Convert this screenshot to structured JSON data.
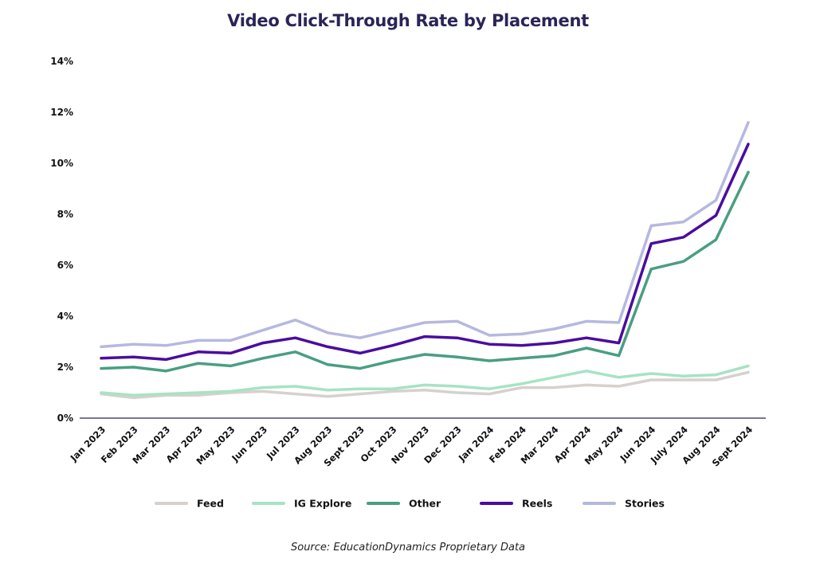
{
  "chart_data": {
    "type": "line",
    "title": "Video Click-Through Rate by Placement",
    "source": "Source: EducationDynamics Proprietary Data",
    "xlabel": "",
    "ylabel": "",
    "ylim": [
      0,
      14
    ],
    "y_ticks": [
      0,
      2,
      4,
      6,
      8,
      10,
      12,
      14
    ],
    "y_tick_labels": [
      "0%",
      "2%",
      "4%",
      "6%",
      "8%",
      "10%",
      "12%",
      "14%"
    ],
    "grid": false,
    "legend_position": "bottom",
    "categories": [
      "Jan 2023",
      "Feb 2023",
      "Mar 2023",
      "Apr 2023",
      "May 2023",
      "Jun 2023",
      "Jul 2023",
      "Aug 2023",
      "Sept 2023",
      "Oct 2023",
      "Nov 2023",
      "Dec 2023",
      "Jan 2024",
      "Feb 2024",
      "Mar 2024",
      "Apr 2024",
      "May 2024",
      "Jun 2024",
      "July 2024",
      "Aug 2024",
      "Sept 2024"
    ],
    "series": [
      {
        "name": "Feed",
        "color": "#d6d1cd",
        "values": [
          0.95,
          0.8,
          0.9,
          0.9,
          1.0,
          1.05,
          0.95,
          0.85,
          0.95,
          1.05,
          1.1,
          1.0,
          0.95,
          1.2,
          1.2,
          1.3,
          1.25,
          1.5,
          1.5,
          1.5,
          1.8
        ]
      },
      {
        "name": "IG Explore",
        "color": "#a6e3c4",
        "values": [
          1.0,
          0.9,
          0.95,
          1.0,
          1.05,
          1.2,
          1.25,
          1.1,
          1.15,
          1.15,
          1.3,
          1.25,
          1.15,
          1.35,
          1.6,
          1.85,
          1.6,
          1.75,
          1.65,
          1.7,
          2.05
        ]
      },
      {
        "name": "Other",
        "color": "#4a9e82",
        "values": [
          1.95,
          2.0,
          1.85,
          2.15,
          2.05,
          2.35,
          2.6,
          2.1,
          1.95,
          2.25,
          2.5,
          2.4,
          2.25,
          2.35,
          2.45,
          2.75,
          2.45,
          5.85,
          6.15,
          7.0,
          9.65
        ]
      },
      {
        "name": "Reels",
        "color": "#4a0d9f",
        "values": [
          2.35,
          2.4,
          2.3,
          2.6,
          2.55,
          2.95,
          3.15,
          2.8,
          2.55,
          2.85,
          3.2,
          3.15,
          2.9,
          2.85,
          2.95,
          3.15,
          2.95,
          6.85,
          7.1,
          7.95,
          10.75
        ]
      },
      {
        "name": "Stories",
        "color": "#b6b8e0",
        "values": [
          2.8,
          2.9,
          2.85,
          3.05,
          3.05,
          3.45,
          3.85,
          3.35,
          3.15,
          3.45,
          3.75,
          3.8,
          3.25,
          3.3,
          3.5,
          3.8,
          3.75,
          7.55,
          7.7,
          8.55,
          11.6
        ]
      }
    ]
  }
}
